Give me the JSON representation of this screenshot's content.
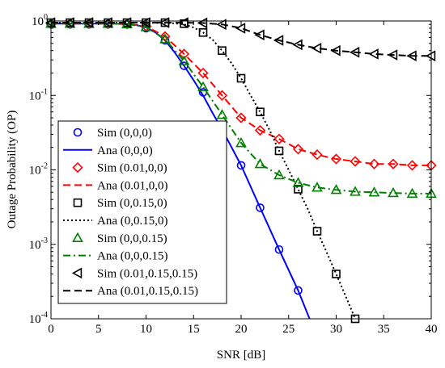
{
  "chart_data": {
    "type": "line",
    "xlabel": "SNR [dB]",
    "ylabel": "Outage  Probability (OP)",
    "xlim": [
      0,
      40
    ],
    "ylim": [
      0.0001,
      1
    ],
    "yscale": "log",
    "xticks": [
      0,
      5,
      10,
      15,
      20,
      25,
      30,
      35,
      40
    ],
    "yticks": [
      {
        "value": 1,
        "base": "10",
        "exp": "0"
      },
      {
        "value": 0.1,
        "base": "10",
        "exp": "-1"
      },
      {
        "value": 0.01,
        "base": "10",
        "exp": "-2"
      },
      {
        "value": 0.001,
        "base": "10",
        "exp": "-3"
      },
      {
        "value": 0.0001,
        "base": "10",
        "exp": "-4"
      }
    ],
    "legend_position": "bottom-left",
    "series": [
      {
        "name": "Sim (0,0,0)",
        "kind": "marker",
        "marker": "circle",
        "color": "#0000ff",
        "x": [
          0,
          2,
          4,
          6,
          8,
          10,
          12,
          14,
          16,
          18,
          20,
          22,
          24,
          26
        ],
        "y": [
          0.9,
          0.9,
          0.9,
          0.9,
          0.9,
          0.8,
          0.55,
          0.25,
          0.11,
          0.035,
          0.0115,
          0.0031,
          0.00085,
          0.00024
        ]
      },
      {
        "name": "Ana (0,0,0)",
        "kind": "line",
        "dash": "solid",
        "color": "#0000ff",
        "x": [
          0,
          2,
          4,
          6,
          8,
          9,
          10,
          11,
          12,
          13,
          14,
          15,
          16,
          17,
          18,
          19,
          20,
          22,
          24,
          26,
          27.2
        ],
        "y": [
          0.92,
          0.92,
          0.92,
          0.92,
          0.91,
          0.88,
          0.82,
          0.7,
          0.55,
          0.38,
          0.25,
          0.16,
          0.1,
          0.058,
          0.035,
          0.02,
          0.0115,
          0.0031,
          0.00085,
          0.00024,
          0.0001
        ]
      },
      {
        "name": "Sim (0.01,0,0)",
        "kind": "marker",
        "marker": "diamond",
        "color": "#ff0000",
        "x": [
          0,
          2,
          4,
          6,
          8,
          10,
          12,
          14,
          16,
          18,
          20,
          22,
          24,
          26,
          28,
          30,
          32,
          34,
          36,
          38,
          40
        ],
        "y": [
          0.92,
          0.92,
          0.92,
          0.92,
          0.91,
          0.85,
          0.62,
          0.36,
          0.2,
          0.1,
          0.05,
          0.034,
          0.026,
          0.019,
          0.016,
          0.014,
          0.013,
          0.012,
          0.012,
          0.0115,
          0.0115
        ]
      },
      {
        "name": "Ana (0.01,0,0)",
        "kind": "line",
        "dash": "dashed",
        "color": "#ff0000",
        "x": [
          0,
          2,
          4,
          6,
          8,
          10,
          12,
          14,
          16,
          18,
          20,
          22,
          24,
          26,
          28,
          30,
          32,
          34,
          36,
          38,
          40
        ],
        "y": [
          0.92,
          0.92,
          0.92,
          0.92,
          0.91,
          0.85,
          0.62,
          0.36,
          0.2,
          0.1,
          0.05,
          0.034,
          0.026,
          0.019,
          0.016,
          0.014,
          0.013,
          0.012,
          0.012,
          0.0115,
          0.0115
        ]
      },
      {
        "name": "Sim (0,0.15,0)",
        "kind": "marker",
        "marker": "square",
        "color": "#000000",
        "x": [
          0,
          2,
          4,
          6,
          8,
          10,
          12,
          14,
          16,
          18,
          20,
          22,
          24,
          26,
          28,
          30,
          32
        ],
        "y": [
          0.95,
          0.95,
          0.95,
          0.95,
          0.95,
          0.95,
          0.95,
          0.92,
          0.7,
          0.4,
          0.17,
          0.06,
          0.018,
          0.0055,
          0.0015,
          0.0004,
          0.0001
        ]
      },
      {
        "name": "Ana (0,0.15,0)",
        "kind": "line",
        "dash": "dotted",
        "color": "#000000",
        "x": [
          0,
          2,
          4,
          6,
          8,
          10,
          12,
          13,
          14,
          15,
          16,
          17,
          18,
          19,
          20,
          21,
          22,
          23,
          24,
          25,
          26,
          27,
          28,
          29,
          30,
          31,
          32
        ],
        "y": [
          0.95,
          0.95,
          0.95,
          0.95,
          0.95,
          0.95,
          0.94,
          0.93,
          0.9,
          0.82,
          0.7,
          0.56,
          0.4,
          0.27,
          0.17,
          0.1,
          0.06,
          0.034,
          0.018,
          0.01,
          0.0055,
          0.003,
          0.0015,
          0.00078,
          0.0004,
          0.0002,
          0.0001
        ]
      },
      {
        "name": "Sim (0,0,0.15)",
        "kind": "marker",
        "marker": "triangle-up",
        "color": "#008000",
        "x": [
          0,
          2,
          4,
          6,
          8,
          10,
          12,
          14,
          16,
          18,
          20,
          22,
          24,
          26,
          28,
          30,
          32,
          34,
          36,
          38,
          40
        ],
        "y": [
          0.92,
          0.92,
          0.92,
          0.92,
          0.91,
          0.83,
          0.57,
          0.29,
          0.13,
          0.055,
          0.023,
          0.012,
          0.0085,
          0.0067,
          0.0058,
          0.0054,
          0.0051,
          0.005,
          0.0049,
          0.0048,
          0.0048
        ]
      },
      {
        "name": "Ana (0,0,0.15)",
        "kind": "line",
        "dash": "dashdot",
        "color": "#008000",
        "x": [
          0,
          2,
          4,
          6,
          8,
          10,
          12,
          14,
          16,
          18,
          20,
          22,
          24,
          26,
          28,
          30,
          32,
          34,
          36,
          38,
          40
        ],
        "y": [
          0.92,
          0.92,
          0.92,
          0.92,
          0.91,
          0.83,
          0.57,
          0.29,
          0.13,
          0.055,
          0.023,
          0.012,
          0.0085,
          0.0067,
          0.0058,
          0.0054,
          0.0051,
          0.005,
          0.0049,
          0.0048,
          0.0048
        ]
      },
      {
        "name": "Sim (0.01,0.15,0.15)",
        "kind": "marker",
        "marker": "triangle-left",
        "color": "#000000",
        "x": [
          0,
          2,
          4,
          6,
          8,
          10,
          12,
          14,
          16,
          18,
          20,
          22,
          24,
          26,
          28,
          30,
          32,
          34,
          36,
          38,
          40
        ],
        "y": [
          0.95,
          0.95,
          0.95,
          0.95,
          0.95,
          0.95,
          0.95,
          0.95,
          0.94,
          0.9,
          0.8,
          0.65,
          0.55,
          0.48,
          0.43,
          0.4,
          0.38,
          0.36,
          0.35,
          0.34,
          0.34
        ]
      },
      {
        "name": "Ana (0.01,0.15,0.15)",
        "kind": "line",
        "dash": "dashed",
        "color": "#000000",
        "x": [
          0,
          2,
          4,
          6,
          8,
          10,
          12,
          14,
          16,
          18,
          20,
          22,
          24,
          26,
          28,
          30,
          32,
          34,
          36,
          38,
          40
        ],
        "y": [
          0.95,
          0.95,
          0.95,
          0.95,
          0.95,
          0.95,
          0.95,
          0.95,
          0.94,
          0.9,
          0.8,
          0.65,
          0.55,
          0.48,
          0.43,
          0.4,
          0.38,
          0.36,
          0.35,
          0.34,
          0.34
        ]
      }
    ]
  }
}
